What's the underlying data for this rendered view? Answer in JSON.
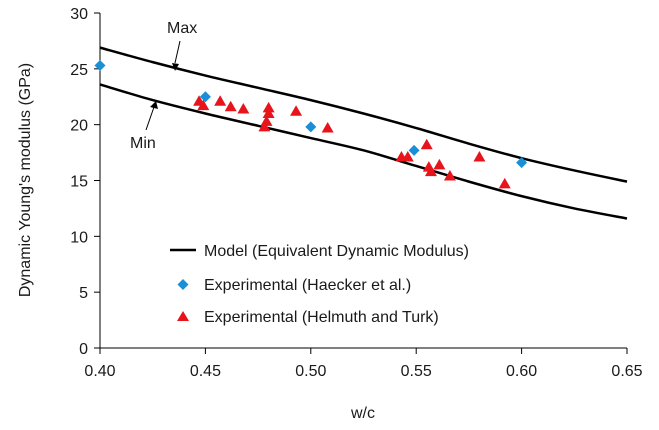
{
  "chart_data": {
    "type": "scatter",
    "xlabel": "w/c",
    "ylabel": "Dynamic Young's modulus (GPa)",
    "xlim": [
      0.4,
      0.65
    ],
    "ylim": [
      0,
      30
    ],
    "x_ticks": [
      "0.40",
      "0.45",
      "0.50",
      "0.55",
      "0.60",
      "0.65"
    ],
    "y_ticks": [
      "0",
      "5",
      "10",
      "15",
      "20",
      "25",
      "30"
    ],
    "grid": false,
    "legend_position": "bottom-center",
    "annotations": [
      {
        "text": "Max",
        "series": "Max"
      },
      {
        "text": "Min",
        "series": "Min"
      }
    ],
    "series": [
      {
        "name": "Model (Equivalent Dynamic Modulus)",
        "type": "line",
        "color": "#000000",
        "curves": [
          {
            "id": "Max",
            "points": [
              [
                0.4,
                26.9
              ],
              [
                0.425,
                25.6
              ],
              [
                0.45,
                24.4
              ],
              [
                0.475,
                23.3
              ],
              [
                0.5,
                22.2
              ],
              [
                0.525,
                21.0
              ],
              [
                0.55,
                19.7
              ],
              [
                0.575,
                18.3
              ],
              [
                0.6,
                17.0
              ],
              [
                0.625,
                15.9
              ],
              [
                0.65,
                14.9
              ]
            ]
          },
          {
            "id": "Min",
            "points": [
              [
                0.4,
                23.6
              ],
              [
                0.425,
                22.2
              ],
              [
                0.45,
                21.0
              ],
              [
                0.475,
                19.9
              ],
              [
                0.5,
                18.8
              ],
              [
                0.525,
                17.7
              ],
              [
                0.55,
                16.3
              ],
              [
                0.575,
                14.9
              ],
              [
                0.6,
                13.6
              ],
              [
                0.625,
                12.5
              ],
              [
                0.65,
                11.6
              ]
            ]
          }
        ]
      },
      {
        "name": "Experimental (Haecker et al.)",
        "type": "scatter",
        "marker": "diamond",
        "color": "#1b8fd6",
        "points": [
          [
            0.4,
            25.3
          ],
          [
            0.45,
            22.5
          ],
          [
            0.5,
            19.8
          ],
          [
            0.549,
            17.7
          ],
          [
            0.6,
            16.6
          ]
        ]
      },
      {
        "name": "Experimental (Helmuth and Turk)",
        "type": "scatter",
        "marker": "triangle",
        "color": "#e8141c",
        "points": [
          [
            0.447,
            22.1
          ],
          [
            0.449,
            21.7
          ],
          [
            0.457,
            22.1
          ],
          [
            0.462,
            21.6
          ],
          [
            0.468,
            21.4
          ],
          [
            0.478,
            19.8
          ],
          [
            0.479,
            20.3
          ],
          [
            0.48,
            21.0
          ],
          [
            0.48,
            21.5
          ],
          [
            0.493,
            21.2
          ],
          [
            0.508,
            19.7
          ],
          [
            0.543,
            17.1
          ],
          [
            0.546,
            17.1
          ],
          [
            0.555,
            18.2
          ],
          [
            0.556,
            16.2
          ],
          [
            0.557,
            15.8
          ],
          [
            0.561,
            16.4
          ],
          [
            0.566,
            15.4
          ],
          [
            0.58,
            17.1
          ],
          [
            0.592,
            14.7
          ]
        ]
      }
    ]
  },
  "legend": {
    "model": "Model (Equivalent Dynamic Modulus)",
    "haecker": "Experimental (Haecker et al.)",
    "helmuth": "Experimental (Helmuth and Turk)"
  },
  "axes": {
    "xlabel": "w/c",
    "ylabel": "Dynamic Young's modulus (GPa)"
  },
  "annotations": {
    "max": "Max",
    "min": "Min"
  },
  "colors": {
    "line": "#000000",
    "diamond": "#1b8fd6",
    "triangle": "#e8141c"
  }
}
